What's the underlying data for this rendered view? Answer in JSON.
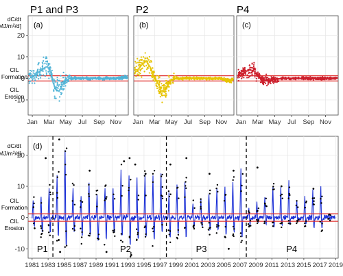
{
  "colors": {
    "panel_a": "#4fb3d6",
    "panel_b": "#e6c300",
    "panel_c": "#cc1f2c",
    "series_d": "#1a2fd6",
    "threshold": "#e0302f",
    "points_d": "#000000",
    "grid": "#e6e6e6"
  },
  "titles": {
    "a": "P1 and P3",
    "b": "P2",
    "c": "P4"
  },
  "panel_labels": {
    "a": "(a)",
    "b": "(b)",
    "c": "(c)",
    "d": "(d)"
  },
  "y_axis": {
    "title_line1": "dC/dt",
    "title_line2": "[MJ/m²/d]",
    "formation_line1": "CIL",
    "formation_line2": "Formation",
    "erosion_line1": "CIL",
    "erosion_line2": "Erosion"
  },
  "phase_labels": [
    {
      "label": "P1",
      "year": 1981.6
    },
    {
      "label": "P2",
      "year": 1992.0
    },
    {
      "label": "P3",
      "year": 2001.5
    },
    {
      "label": "P4",
      "year": 2012.8
    }
  ],
  "chart_data": [
    {
      "type": "scatter",
      "panel": "a",
      "title": "P1 and P3",
      "x_ticks": [
        "Jan",
        "Mar",
        "May",
        "Jul",
        "Sep",
        "Nov"
      ],
      "y_ticks": [
        -10,
        0,
        10,
        20
      ],
      "ylim": [
        -17,
        29
      ],
      "xlim_month": [
        0.5,
        12.5
      ],
      "threshold_lines": [
        -1.2,
        1.2
      ],
      "mean_curve": [
        [
          1,
          1
        ],
        [
          1.5,
          2
        ],
        [
          2,
          3.5
        ],
        [
          2.5,
          5
        ],
        [
          2.8,
          5.5
        ],
        [
          3.2,
          3
        ],
        [
          3.5,
          -2
        ],
        [
          3.8,
          -5
        ],
        [
          4.2,
          -6
        ],
        [
          4.6,
          -3
        ],
        [
          5,
          -1
        ],
        [
          5.5,
          0
        ],
        [
          7,
          0
        ],
        [
          9,
          0
        ],
        [
          11,
          0
        ],
        [
          12,
          0.5
        ]
      ],
      "spread": 4.5
    },
    {
      "type": "scatter",
      "panel": "b",
      "title": "P2",
      "x_ticks": [
        "Jan",
        "Mar",
        "May",
        "Jul",
        "Sep",
        "Nov"
      ],
      "y_ticks": [
        -10,
        0,
        10,
        20
      ],
      "ylim": [
        -17,
        29
      ],
      "xlim_month": [
        0.5,
        12.5
      ],
      "threshold_lines": [
        -1.2,
        1.2
      ],
      "mean_curve": [
        [
          1,
          4
        ],
        [
          1.5,
          6.5
        ],
        [
          2,
          8
        ],
        [
          2.5,
          5
        ],
        [
          3,
          0
        ],
        [
          3.5,
          -3
        ],
        [
          3.8,
          -6
        ],
        [
          4.2,
          -5
        ],
        [
          4.6,
          -3
        ],
        [
          5,
          -1
        ],
        [
          5.5,
          0
        ],
        [
          8,
          0
        ],
        [
          11,
          0
        ],
        [
          11.5,
          -0.8
        ],
        [
          12.2,
          -1.2
        ],
        [
          12.5,
          0.5
        ]
      ],
      "spread": 3.5
    },
    {
      "type": "scatter",
      "panel": "c",
      "title": "P4",
      "x_ticks": [
        "Jan",
        "Mar",
        "May",
        "Jul",
        "Sep",
        "Nov"
      ],
      "y_ticks": [
        -10,
        0,
        10,
        20
      ],
      "ylim": [
        -17,
        29
      ],
      "xlim_month": [
        0.5,
        12.5
      ],
      "threshold_lines": [
        -1.2,
        1.2
      ],
      "mean_curve": [
        [
          1,
          1.5
        ],
        [
          1.5,
          3
        ],
        [
          2,
          4
        ],
        [
          2.5,
          3.5
        ],
        [
          3,
          1
        ],
        [
          3.5,
          -0.5
        ],
        [
          4,
          -1
        ],
        [
          5,
          -0.5
        ],
        [
          6,
          0
        ],
        [
          12,
          0
        ]
      ],
      "spread": 2.5
    },
    {
      "type": "line",
      "panel": "d",
      "xlabel": "",
      "ylabel": "dC/dt [MJ/m²/d]",
      "x_ticks": [
        "1981",
        "1983",
        "1985",
        "1987",
        "1989",
        "1991",
        "1993",
        "1995",
        "1997",
        "1999",
        "2001",
        "2003",
        "2005",
        "2007",
        "2009",
        "2011",
        "2013",
        "2015",
        "2017",
        "2019"
      ],
      "y_ticks": [
        -10,
        0,
        10,
        20
      ],
      "ylim": [
        -13,
        26
      ],
      "xlim": [
        1980.5,
        2019.3
      ],
      "threshold_lines": [
        -1.2,
        1.2
      ],
      "phase_boundaries": [
        1983.6,
        1997.8,
        2007.8
      ],
      "years": [
        1981,
        1982,
        1983,
        1984,
        1985,
        1986,
        1987,
        1988,
        1989,
        1990,
        1991,
        1992,
        1993,
        1994,
        1995,
        1996,
        1997,
        1998,
        1999,
        2000,
        2001,
        2002,
        2003,
        2004,
        2005,
        2006,
        2007,
        2008,
        2009,
        2010,
        2011,
        2012,
        2013,
        2014,
        2015,
        2016,
        2017,
        2018
      ],
      "peaks": [
        6,
        7,
        10,
        14,
        22,
        10,
        7,
        12,
        8,
        10,
        10,
        16,
        14,
        13,
        14,
        14,
        15,
        8,
        11,
        12,
        5,
        6,
        8,
        10,
        10,
        12,
        16,
        3,
        5,
        7,
        10,
        10,
        12,
        6,
        7,
        9,
        10,
        1
      ],
      "troughs": [
        -4,
        -6,
        -6,
        -8,
        -12,
        -6,
        -8,
        -7,
        -10,
        -9,
        -6,
        -8,
        -12,
        -9,
        -8,
        -9,
        -6,
        -8,
        -7,
        -8,
        -4,
        -4,
        -5,
        -5,
        -7,
        -6,
        -8,
        -3,
        -2,
        -3,
        -4,
        -3,
        -3,
        -2,
        -3,
        -4,
        -4,
        -1
      ],
      "outliers": [
        [
          1982.7,
          19
        ],
        [
          1984.4,
          25
        ],
        [
          1988.2,
          15
        ],
        [
          1992.5,
          18
        ],
        [
          1993.2,
          19
        ],
        [
          1993.9,
          17
        ],
        [
          1995.2,
          14
        ],
        [
          1998.3,
          17
        ],
        [
          2000.3,
          19
        ],
        [
          2003.2,
          14
        ],
        [
          2006.2,
          15
        ],
        [
          2009.2,
          16
        ],
        [
          2012.2,
          10
        ],
        [
          1984.5,
          -11
        ],
        [
          1990.3,
          -11
        ],
        [
          1993.4,
          -12
        ],
        [
          2005.6,
          -10
        ]
      ]
    }
  ]
}
